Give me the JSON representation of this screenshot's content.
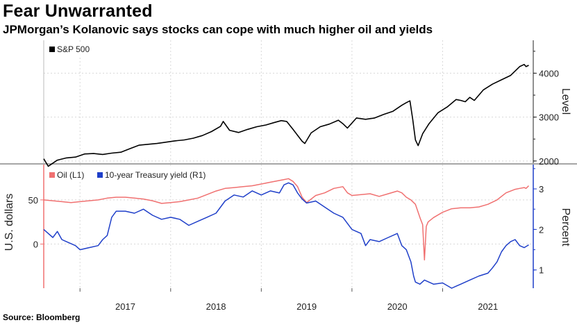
{
  "title": "Fear Unwarranted",
  "subtitle": "JPMorgan’s Kolanovic says stocks can cope with much higher oil and yields",
  "source": "Source: Bloomberg",
  "colors": {
    "sp500": "#000000",
    "oil": "#f07070",
    "treasury": "#1f3fc9",
    "grid": "#d8d8d8",
    "divider": "#888888"
  },
  "chart_data": [
    {
      "type": "line",
      "title": "",
      "ylabel": "Level",
      "y_axis_side": "right",
      "ylim": [
        1950,
        4750
      ],
      "yticks": [
        2000,
        3000,
        4000
      ],
      "legend_placement": "top-left",
      "grid": true,
      "series": [
        {
          "name": "S&P 500",
          "x": [
            2016.1,
            2016.15,
            2016.25,
            2016.35,
            2016.45,
            2016.55,
            2016.65,
            2016.75,
            2016.85,
            2016.95,
            2017.05,
            2017.15,
            2017.25,
            2017.35,
            2017.45,
            2017.55,
            2017.65,
            2017.75,
            2017.85,
            2017.95,
            2018.05,
            2018.08,
            2018.15,
            2018.25,
            2018.35,
            2018.45,
            2018.55,
            2018.65,
            2018.72,
            2018.78,
            2018.85,
            2018.95,
            2018.98,
            2019.05,
            2019.15,
            2019.25,
            2019.35,
            2019.4,
            2019.45,
            2019.55,
            2019.65,
            2019.75,
            2019.85,
            2019.95,
            2020.05,
            2020.1,
            2020.14,
            2020.17,
            2020.2,
            2020.23,
            2020.28,
            2020.35,
            2020.45,
            2020.55,
            2020.65,
            2020.7,
            2020.75,
            2020.8,
            2020.85,
            2020.95,
            2021.05,
            2021.15,
            2021.25,
            2021.35,
            2021.4,
            2021.42,
            2021.45
          ],
          "values": [
            2050,
            1880,
            2020,
            2070,
            2090,
            2160,
            2170,
            2150,
            2180,
            2200,
            2280,
            2360,
            2380,
            2400,
            2430,
            2460,
            2480,
            2520,
            2580,
            2670,
            2790,
            2900,
            2700,
            2650,
            2720,
            2780,
            2820,
            2880,
            2920,
            2900,
            2720,
            2450,
            2400,
            2640,
            2780,
            2840,
            2930,
            2850,
            2750,
            2980,
            2950,
            2980,
            3060,
            3130,
            3270,
            3330,
            3370,
            2950,
            2480,
            2350,
            2620,
            2850,
            3100,
            3230,
            3400,
            3380,
            3350,
            3450,
            3380,
            3620,
            3750,
            3850,
            3950,
            4150,
            4200,
            4150,
            4180
          ]
        }
      ]
    },
    {
      "type": "line",
      "title": "",
      "ylabel_left": "U.S. dollars",
      "ylabel_right": "Percent",
      "ylim_left": [
        -50,
        90
      ],
      "ylim_right": [
        0.55,
        3.6
      ],
      "yticks_left": [
        0,
        50
      ],
      "yticks_right": [
        1,
        2,
        3
      ],
      "legend_placement": "top-left",
      "grid": true,
      "series": [
        {
          "name": "Oil (L1)",
          "axis": "left",
          "x": [
            2016.1,
            2016.2,
            2016.3,
            2016.4,
            2016.5,
            2016.6,
            2016.7,
            2016.8,
            2016.9,
            2017.0,
            2017.1,
            2017.2,
            2017.3,
            2017.4,
            2017.5,
            2017.6,
            2017.7,
            2017.8,
            2017.9,
            2018.0,
            2018.1,
            2018.2,
            2018.3,
            2018.4,
            2018.5,
            2018.6,
            2018.7,
            2018.75,
            2018.8,
            2018.85,
            2018.9,
            2018.95,
            2019.0,
            2019.1,
            2019.2,
            2019.3,
            2019.4,
            2019.45,
            2019.5,
            2019.6,
            2019.7,
            2019.8,
            2019.9,
            2020.0,
            2020.05,
            2020.1,
            2020.15,
            2020.2,
            2020.25,
            2020.28,
            2020.3,
            2020.32,
            2020.34,
            2020.4,
            2020.5,
            2020.6,
            2020.7,
            2020.8,
            2020.9,
            2021.0,
            2021.1,
            2021.2,
            2021.3,
            2021.35,
            2021.4,
            2021.42,
            2021.45
          ],
          "values": [
            50,
            49,
            48,
            47,
            48,
            49,
            50,
            52,
            53,
            53,
            52,
            51,
            49,
            46,
            47,
            48,
            50,
            52,
            56,
            60,
            63,
            64,
            65,
            66,
            68,
            70,
            72,
            73,
            74,
            71,
            65,
            53,
            47,
            55,
            58,
            63,
            65,
            58,
            55,
            56,
            57,
            54,
            57,
            60,
            58,
            53,
            50,
            45,
            30,
            22,
            -18,
            20,
            25,
            30,
            36,
            40,
            41,
            41,
            42,
            45,
            50,
            58,
            62,
            63,
            64,
            63,
            66
          ]
        },
        {
          "name": "10-year Treasury yield (R1)",
          "axis": "right",
          "x": [
            2016.1,
            2016.15,
            2016.2,
            2016.25,
            2016.3,
            2016.35,
            2016.45,
            2016.5,
            2016.6,
            2016.7,
            2016.75,
            2016.8,
            2016.85,
            2016.9,
            2017.0,
            2017.1,
            2017.2,
            2017.3,
            2017.4,
            2017.5,
            2017.6,
            2017.7,
            2017.8,
            2017.9,
            2018.0,
            2018.1,
            2018.2,
            2018.3,
            2018.4,
            2018.5,
            2018.6,
            2018.7,
            2018.75,
            2018.8,
            2018.85,
            2018.9,
            2018.95,
            2019.0,
            2019.1,
            2019.2,
            2019.3,
            2019.4,
            2019.5,
            2019.6,
            2019.65,
            2019.7,
            2019.8,
            2019.9,
            2020.0,
            2020.05,
            2020.1,
            2020.15,
            2020.18,
            2020.2,
            2020.25,
            2020.3,
            2020.4,
            2020.5,
            2020.6,
            2020.65,
            2020.7,
            2020.8,
            2020.9,
            2021.0,
            2021.05,
            2021.1,
            2021.15,
            2021.2,
            2021.25,
            2021.3,
            2021.35,
            2021.4,
            2021.45
          ],
          "values": [
            2.0,
            1.9,
            1.8,
            1.95,
            1.75,
            1.7,
            1.6,
            1.5,
            1.55,
            1.6,
            1.75,
            1.85,
            2.3,
            2.45,
            2.45,
            2.4,
            2.5,
            2.35,
            2.25,
            2.3,
            2.25,
            2.1,
            2.2,
            2.3,
            2.4,
            2.7,
            2.85,
            2.8,
            2.95,
            2.85,
            2.95,
            2.9,
            3.1,
            3.15,
            3.1,
            2.9,
            2.75,
            2.65,
            2.7,
            2.55,
            2.4,
            2.3,
            2.0,
            1.9,
            1.6,
            1.75,
            1.7,
            1.8,
            1.9,
            1.6,
            1.5,
            1.2,
            0.85,
            0.7,
            0.65,
            0.75,
            0.65,
            0.68,
            0.55,
            0.6,
            0.65,
            0.75,
            0.85,
            0.92,
            1.05,
            1.2,
            1.45,
            1.6,
            1.7,
            1.75,
            1.6,
            1.55,
            1.62
          ]
        }
      ]
    }
  ],
  "x_axis": {
    "type": "date",
    "xlim": [
      2016.1,
      2021.5
    ],
    "tick_labels": [
      "2017",
      "2018",
      "2019",
      "2020",
      "2021"
    ]
  }
}
